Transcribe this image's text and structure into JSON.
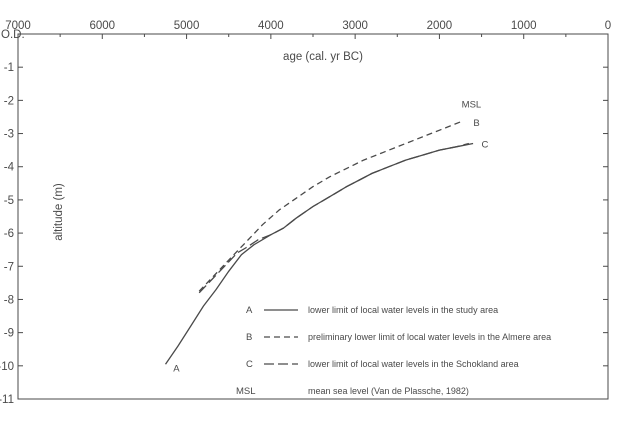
{
  "chart_data": {
    "type": "line",
    "xlabel": "age (cal. yr BC)",
    "ylabel": "altitude (m)",
    "xlim": [
      7000,
      0
    ],
    "ylim": [
      -11,
      0
    ],
    "x_reversed": true,
    "x_axis_position": "top",
    "x_ticks": [
      "7000",
      "6000",
      "5000",
      "4000",
      "3000",
      "2000",
      "1000",
      "0"
    ],
    "y_ticks": [
      "O.D.",
      "-1",
      "-2",
      "-3",
      "-4",
      "-5",
      "-6",
      "-7",
      "-8",
      "-9",
      "-10",
      "-11"
    ],
    "series": [
      {
        "name": "A",
        "style": "solid",
        "x": [
          5250,
          5100,
          4950,
          4800,
          4650,
          4500,
          4350,
          4200,
          4000,
          3850,
          3700,
          3500,
          3300,
          3100,
          2950,
          2800,
          2600,
          2400,
          2200,
          2000,
          1800,
          1600
        ],
        "y": [
          -9.95,
          -9.4,
          -8.8,
          -8.2,
          -7.7,
          -7.15,
          -6.65,
          -6.35,
          -6.05,
          -5.85,
          -5.55,
          -5.2,
          -4.9,
          -4.6,
          -4.4,
          -4.2,
          -4.0,
          -3.8,
          -3.65,
          -3.5,
          -3.4,
          -3.3
        ]
      },
      {
        "name": "B",
        "style": "dashed",
        "x": [
          4850,
          4700,
          4550,
          4400,
          4250,
          4100,
          3900,
          3700,
          3500,
          3300,
          3100,
          2900,
          2700,
          2500,
          2300,
          2100,
          1900,
          1750
        ],
        "y": [
          -7.75,
          -7.35,
          -6.95,
          -6.55,
          -6.15,
          -5.75,
          -5.3,
          -4.95,
          -4.6,
          -4.3,
          -4.05,
          -3.8,
          -3.6,
          -3.4,
          -3.2,
          -3.0,
          -2.8,
          -2.65
        ]
      },
      {
        "name": "C",
        "style": "long-dash",
        "x": [
          4850,
          4700,
          4550,
          4400,
          4300,
          4150,
          4000,
          3850,
          3700,
          3500,
          3300,
          3100,
          2950,
          2800,
          2600,
          2400,
          2200,
          2000,
          1800,
          1650
        ],
        "y": [
          -7.8,
          -7.4,
          -7.0,
          -6.6,
          -6.45,
          -6.2,
          -6.05,
          -5.85,
          -5.55,
          -5.2,
          -4.9,
          -4.6,
          -4.4,
          -4.2,
          -4.0,
          -3.8,
          -3.65,
          -3.5,
          -3.4,
          -3.3
        ]
      }
    ],
    "curve_labels": [
      {
        "text": "A",
        "x": 5120,
        "y": -10.05
      },
      {
        "text": "B",
        "x": 1560,
        "y": -2.65
      },
      {
        "text": "C",
        "x": 1460,
        "y": -3.3
      },
      {
        "text": "MSL",
        "x": 1620,
        "y": -2.1
      }
    ],
    "legend": {
      "placement": "bottom-right",
      "items": [
        {
          "key": "A",
          "style": "solid",
          "text": "lower  limit of local water levels in the study area"
        },
        {
          "key": "B",
          "style": "dashed",
          "text": "preliminary lower limit of local water levels in the Almere area"
        },
        {
          "key": "C",
          "style": "long-dash",
          "text": "lower limit of local water levels in the Schokland area"
        },
        {
          "key": "MSL",
          "style": "none",
          "text": "mean sea level (Van de Plassche, 1982)"
        }
      ]
    },
    "grid": false,
    "line_color": "#4a4a4a"
  }
}
